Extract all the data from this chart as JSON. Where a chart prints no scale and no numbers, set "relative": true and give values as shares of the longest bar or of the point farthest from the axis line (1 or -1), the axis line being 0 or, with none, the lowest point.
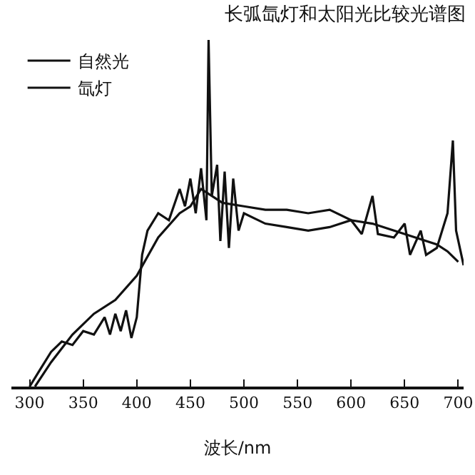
{
  "chart_data": {
    "type": "line",
    "title": "长弧氙灯和太阳光比较光谱图",
    "xlabel": "波长/nm",
    "relative": true,
    "xlim": [
      283,
      705
    ],
    "xticks": [
      300,
      350,
      400,
      450,
      500,
      550,
      600,
      650,
      700
    ],
    "legend": "top left",
    "marker": "none",
    "line_style": "solid",
    "grid": false,
    "series": [
      {
        "name": "自然光",
        "color": "#111111",
        "x": [
          305,
          320,
          340,
          360,
          380,
          400,
          420,
          440,
          450,
          460,
          480,
          500,
          520,
          540,
          560,
          580,
          600,
          620,
          640,
          660,
          680,
          690,
          700
        ],
        "values": [
          0,
          0.07,
          0.15,
          0.21,
          0.25,
          0.32,
          0.43,
          0.5,
          0.52,
          0.57,
          0.53,
          0.52,
          0.51,
          0.51,
          0.5,
          0.51,
          0.48,
          0.47,
          0.45,
          0.43,
          0.41,
          0.39,
          0.36
        ]
      },
      {
        "name": "氙灯",
        "color": "#111111",
        "x": [
          300,
          310,
          320,
          330,
          340,
          350,
          360,
          370,
          375,
          380,
          385,
          390,
          395,
          400,
          405,
          410,
          420,
          430,
          440,
          445,
          450,
          455,
          460,
          465,
          467,
          470,
          475,
          478,
          482,
          486,
          490,
          495,
          500,
          520,
          540,
          560,
          580,
          600,
          610,
          620,
          625,
          640,
          650,
          655,
          665,
          670,
          680,
          690,
          695,
          698,
          705
        ],
        "values": [
          0,
          0.05,
          0.1,
          0.13,
          0.12,
          0.16,
          0.15,
          0.2,
          0.15,
          0.21,
          0.16,
          0.22,
          0.14,
          0.2,
          0.38,
          0.45,
          0.5,
          0.48,
          0.57,
          0.52,
          0.6,
          0.5,
          0.63,
          0.48,
          1,
          0.55,
          0.64,
          0.42,
          0.62,
          0.4,
          0.6,
          0.45,
          0.5,
          0.47,
          0.46,
          0.45,
          0.46,
          0.48,
          0.44,
          0.55,
          0.44,
          0.43,
          0.47,
          0.38,
          0.45,
          0.38,
          0.4,
          0.5,
          0.71,
          0.45,
          0.35
        ]
      }
    ]
  }
}
